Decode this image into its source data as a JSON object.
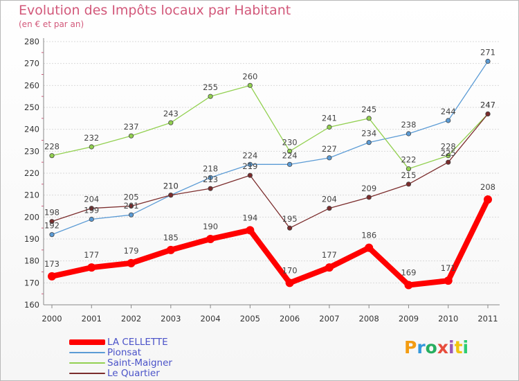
{
  "chart_data": {
    "type": "line",
    "title": "Evolution des Impôts locaux par Habitant",
    "subtitle": "(en € et par an)",
    "x": [
      "2000",
      "2001",
      "2002",
      "2003",
      "2004",
      "2005",
      "2006",
      "2007",
      "2008",
      "2009",
      "2010",
      "2011"
    ],
    "yticks": [
      "160",
      "170",
      "180",
      "190",
      "200",
      "210",
      "220",
      "230",
      "240",
      "250",
      "260",
      "270",
      "280"
    ],
    "ylim": [
      160,
      280
    ],
    "grid": "horizontal",
    "legend_position": "bottom-left",
    "series": [
      {
        "name": "LA CELLETTE",
        "color": "#ff0000",
        "values": [
          173,
          177,
          179,
          185,
          190,
          194,
          170,
          177,
          186,
          169,
          171,
          208
        ],
        "labels": [
          "173",
          "177",
          "179",
          "185",
          "190",
          "194",
          "170",
          "177",
          "186",
          "169",
          "171",
          "208"
        ]
      },
      {
        "name": "Pionsat",
        "color": "#5b9bd5",
        "values": [
          192,
          199,
          201,
          210,
          218,
          224,
          224,
          227,
          234,
          238,
          244,
          271
        ],
        "labels": [
          "192",
          "199",
          "201",
          "210",
          "218",
          "224",
          "224",
          "227",
          "234",
          "238",
          "244",
          "271"
        ]
      },
      {
        "name": "Saint-Maigner",
        "color": "#92d050",
        "values": [
          228,
          232,
          237,
          243,
          255,
          260,
          230,
          241,
          245,
          222,
          228,
          247
        ],
        "labels": [
          "228",
          "232",
          "237",
          "243",
          "255",
          "260",
          "230",
          "241",
          "245",
          "222",
          "228",
          "247"
        ]
      },
      {
        "name": "Le Quartier",
        "color": "#7b2c2c",
        "values": [
          198,
          204,
          205,
          210,
          213,
          219,
          195,
          204,
          209,
          215,
          225,
          247
        ],
        "labels": [
          "198",
          "204",
          "205",
          "210",
          "213",
          "219",
          "195",
          "204",
          "209",
          "215",
          "225",
          "247"
        ]
      }
    ]
  },
  "logo": {
    "letters": [
      {
        "ch": "P",
        "color": "#f39c12"
      },
      {
        "ch": "r",
        "color": "#3498db"
      },
      {
        "ch": "o",
        "color": "#27ae60"
      },
      {
        "ch": "x",
        "color": "#e74c3c"
      },
      {
        "ch": "i",
        "color": "#9b59b6"
      },
      {
        "ch": "t",
        "color": "#f1c40f"
      },
      {
        "ch": "i",
        "color": "#2ecc71"
      }
    ]
  }
}
